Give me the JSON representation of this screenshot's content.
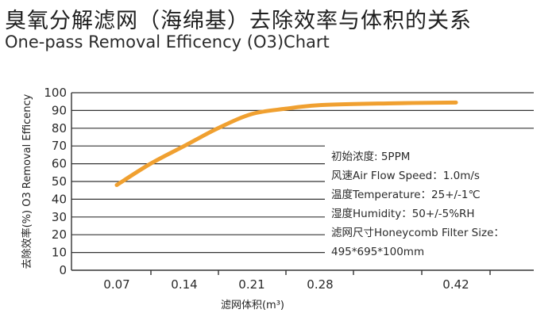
{
  "header": {
    "title_cn": "臭氧分解滤网（海绵基）去除效率与体积的关系",
    "title_en": "One-pass Removal Efficency (O3)Chart"
  },
  "notes": {
    "initial_concentration": "初始浓度:  5PPM",
    "air_flow_speed": "风速Air Flow Speed：1.0m/s",
    "temperature": "温度Temperature：25+/-1℃",
    "humidity": "湿度Humidity：50+/-5%RH",
    "filter_size_label": "滤网尺寸Honeycomb Filter Size：",
    "filter_size_value": "495*695*100mm"
  },
  "colors": {
    "series": "#f0a030",
    "grid": "#333333"
  },
  "chart_data": {
    "type": "line",
    "title": "One-pass Removal Efficency (O3)Chart",
    "xlabel": "滤网体积(m³)",
    "ylabel": "去除效率(%)  O3 Removal Efficency",
    "categories": [
      "0.07",
      "0.14",
      "0.21",
      "0.28",
      "0.42"
    ],
    "ylim": [
      0,
      100
    ],
    "yticks": [
      "0",
      "10",
      "20",
      "30",
      "40",
      "50",
      "60",
      "70",
      "80",
      "90",
      "100"
    ],
    "grid": true,
    "series": [
      {
        "x": [
          0.07,
          0.105,
          0.14,
          0.175,
          0.21,
          0.245,
          0.28,
          0.35,
          0.42
        ],
        "values": [
          48,
          60,
          70,
          80,
          88,
          91,
          93,
          94,
          94.5
        ]
      }
    ]
  }
}
